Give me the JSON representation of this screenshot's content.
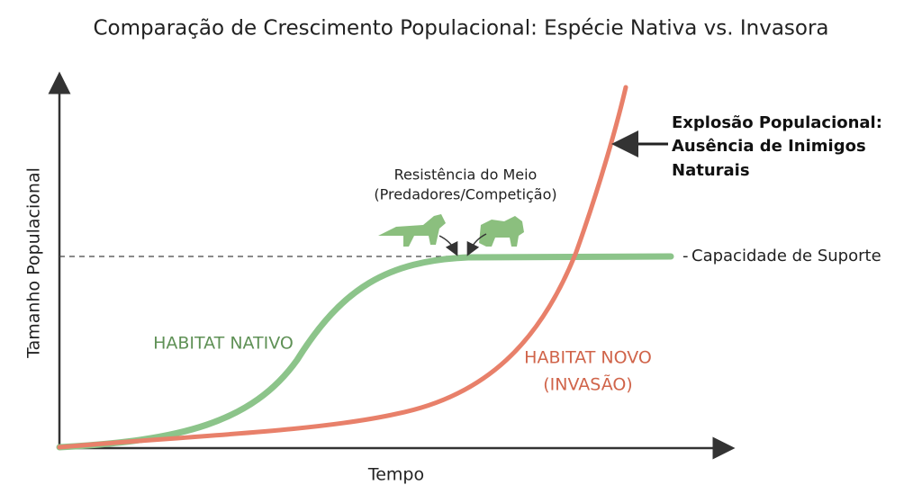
{
  "title": "Comparação de Crescimento Populacional: Espécie Nativa vs. Invasora",
  "axes": {
    "x_label": "Tempo",
    "y_label": "Tamanho Populacional"
  },
  "carrying_capacity": {
    "label": "Capacidade de Suporte"
  },
  "resistance": {
    "lines": [
      "Resistência do Meio",
      "(Predadores/Competição)"
    ]
  },
  "native": {
    "label": "HABITAT NATIVO"
  },
  "invasive": {
    "lines": [
      "HABITAT NOVO",
      "(INVASÃO)"
    ]
  },
  "explosion": {
    "lines": [
      "Explosão Populacional:",
      "Ausência de Inimigos",
      "Naturais"
    ]
  }
}
